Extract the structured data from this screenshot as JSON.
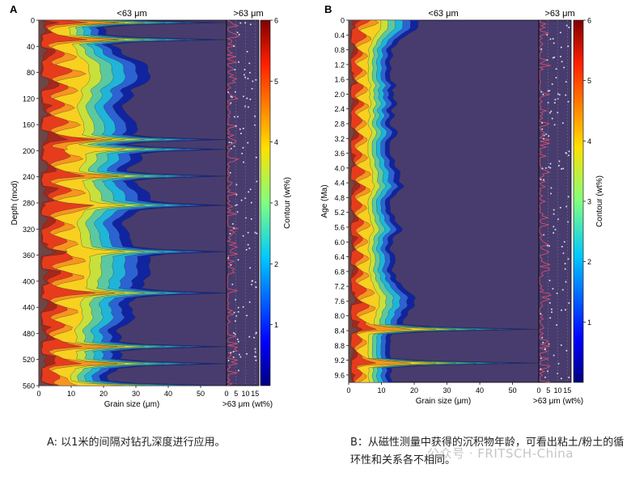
{
  "chart_data": [
    {
      "panel_label": "A",
      "type": "heatmap",
      "title_left": "<63 μm",
      "title_right": ">63 μm",
      "xlabel": "Grain size (μm)",
      "xticks": [
        "0",
        "10",
        "20",
        "30",
        "40",
        "50"
      ],
      "xlim": [
        0,
        58
      ],
      "ylabel": "Depth (mcd)",
      "yticks": [
        "0",
        "40",
        "80",
        "120",
        "160",
        "200",
        "240",
        "280",
        "320",
        "360",
        "400",
        "440",
        "480",
        "520",
        "560"
      ],
      "ylim": [
        0,
        560
      ],
      "side_xlabel": ">63 μm (wt%)",
      "side_xticks": [
        "0",
        "5",
        "10",
        "15"
      ],
      "side_xlim": [
        0,
        17
      ],
      "colorbar_label": "Contour (wt%)",
      "colorbar_ticks": [
        "1",
        "2",
        "3",
        "4",
        "5",
        "6"
      ],
      "colorbar_range": [
        0,
        6
      ],
      "caption": "A: 以1米的间隔对钻孔深度进行应用。"
    },
    {
      "panel_label": "B",
      "type": "heatmap",
      "title_left": "<63 μm",
      "title_right": ">63 μm",
      "xlabel": "Grain size (μm)",
      "xticks": [
        "0",
        "10",
        "20",
        "30",
        "40",
        "50"
      ],
      "xlim": [
        0,
        58
      ],
      "ylabel": "Age (Ma)",
      "yticks": [
        "0",
        "0.4",
        "0.8",
        "1.2",
        "1.6",
        "2.0",
        "2.4",
        "2.8",
        "3.2",
        "3.6",
        "4.0",
        "4.4",
        "4.8",
        "5.2",
        "5.6",
        "6.0",
        "6.4",
        "6.8",
        "7.2",
        "7.6",
        "8.0",
        "8.4",
        "8.8",
        "9.2",
        "9.6"
      ],
      "ylim": [
        0,
        9.8
      ],
      "side_xlabel": ">63 μm (wt%)",
      "side_xticks": [
        "0",
        "5",
        "10",
        "15"
      ],
      "side_xlim": [
        0,
        17
      ],
      "colorbar_label": "Contour (wt%)",
      "colorbar_ticks": [
        "1",
        "2",
        "3",
        "4",
        "5",
        "6"
      ],
      "colorbar_range": [
        0,
        6
      ],
      "caption": "B：从磁性测量中获得的沉积物年龄，可看出粘土/粉土的循环性和关系各不相同。"
    }
  ],
  "watermark": "公众号 · FRITSCH-China",
  "colors": {
    "background_fill": "#483c6e",
    "contour_levels": [
      "#4a3b72",
      "#1024a0",
      "#2c63d2",
      "#20b4d8",
      "#5cc8a0",
      "#c8e03c",
      "#f8d020",
      "#f89420",
      "#e63c1c",
      "#a4281c",
      "#6e4646"
    ],
    "side_line": "#e0506a",
    "side_points": "#d8dcf0"
  }
}
